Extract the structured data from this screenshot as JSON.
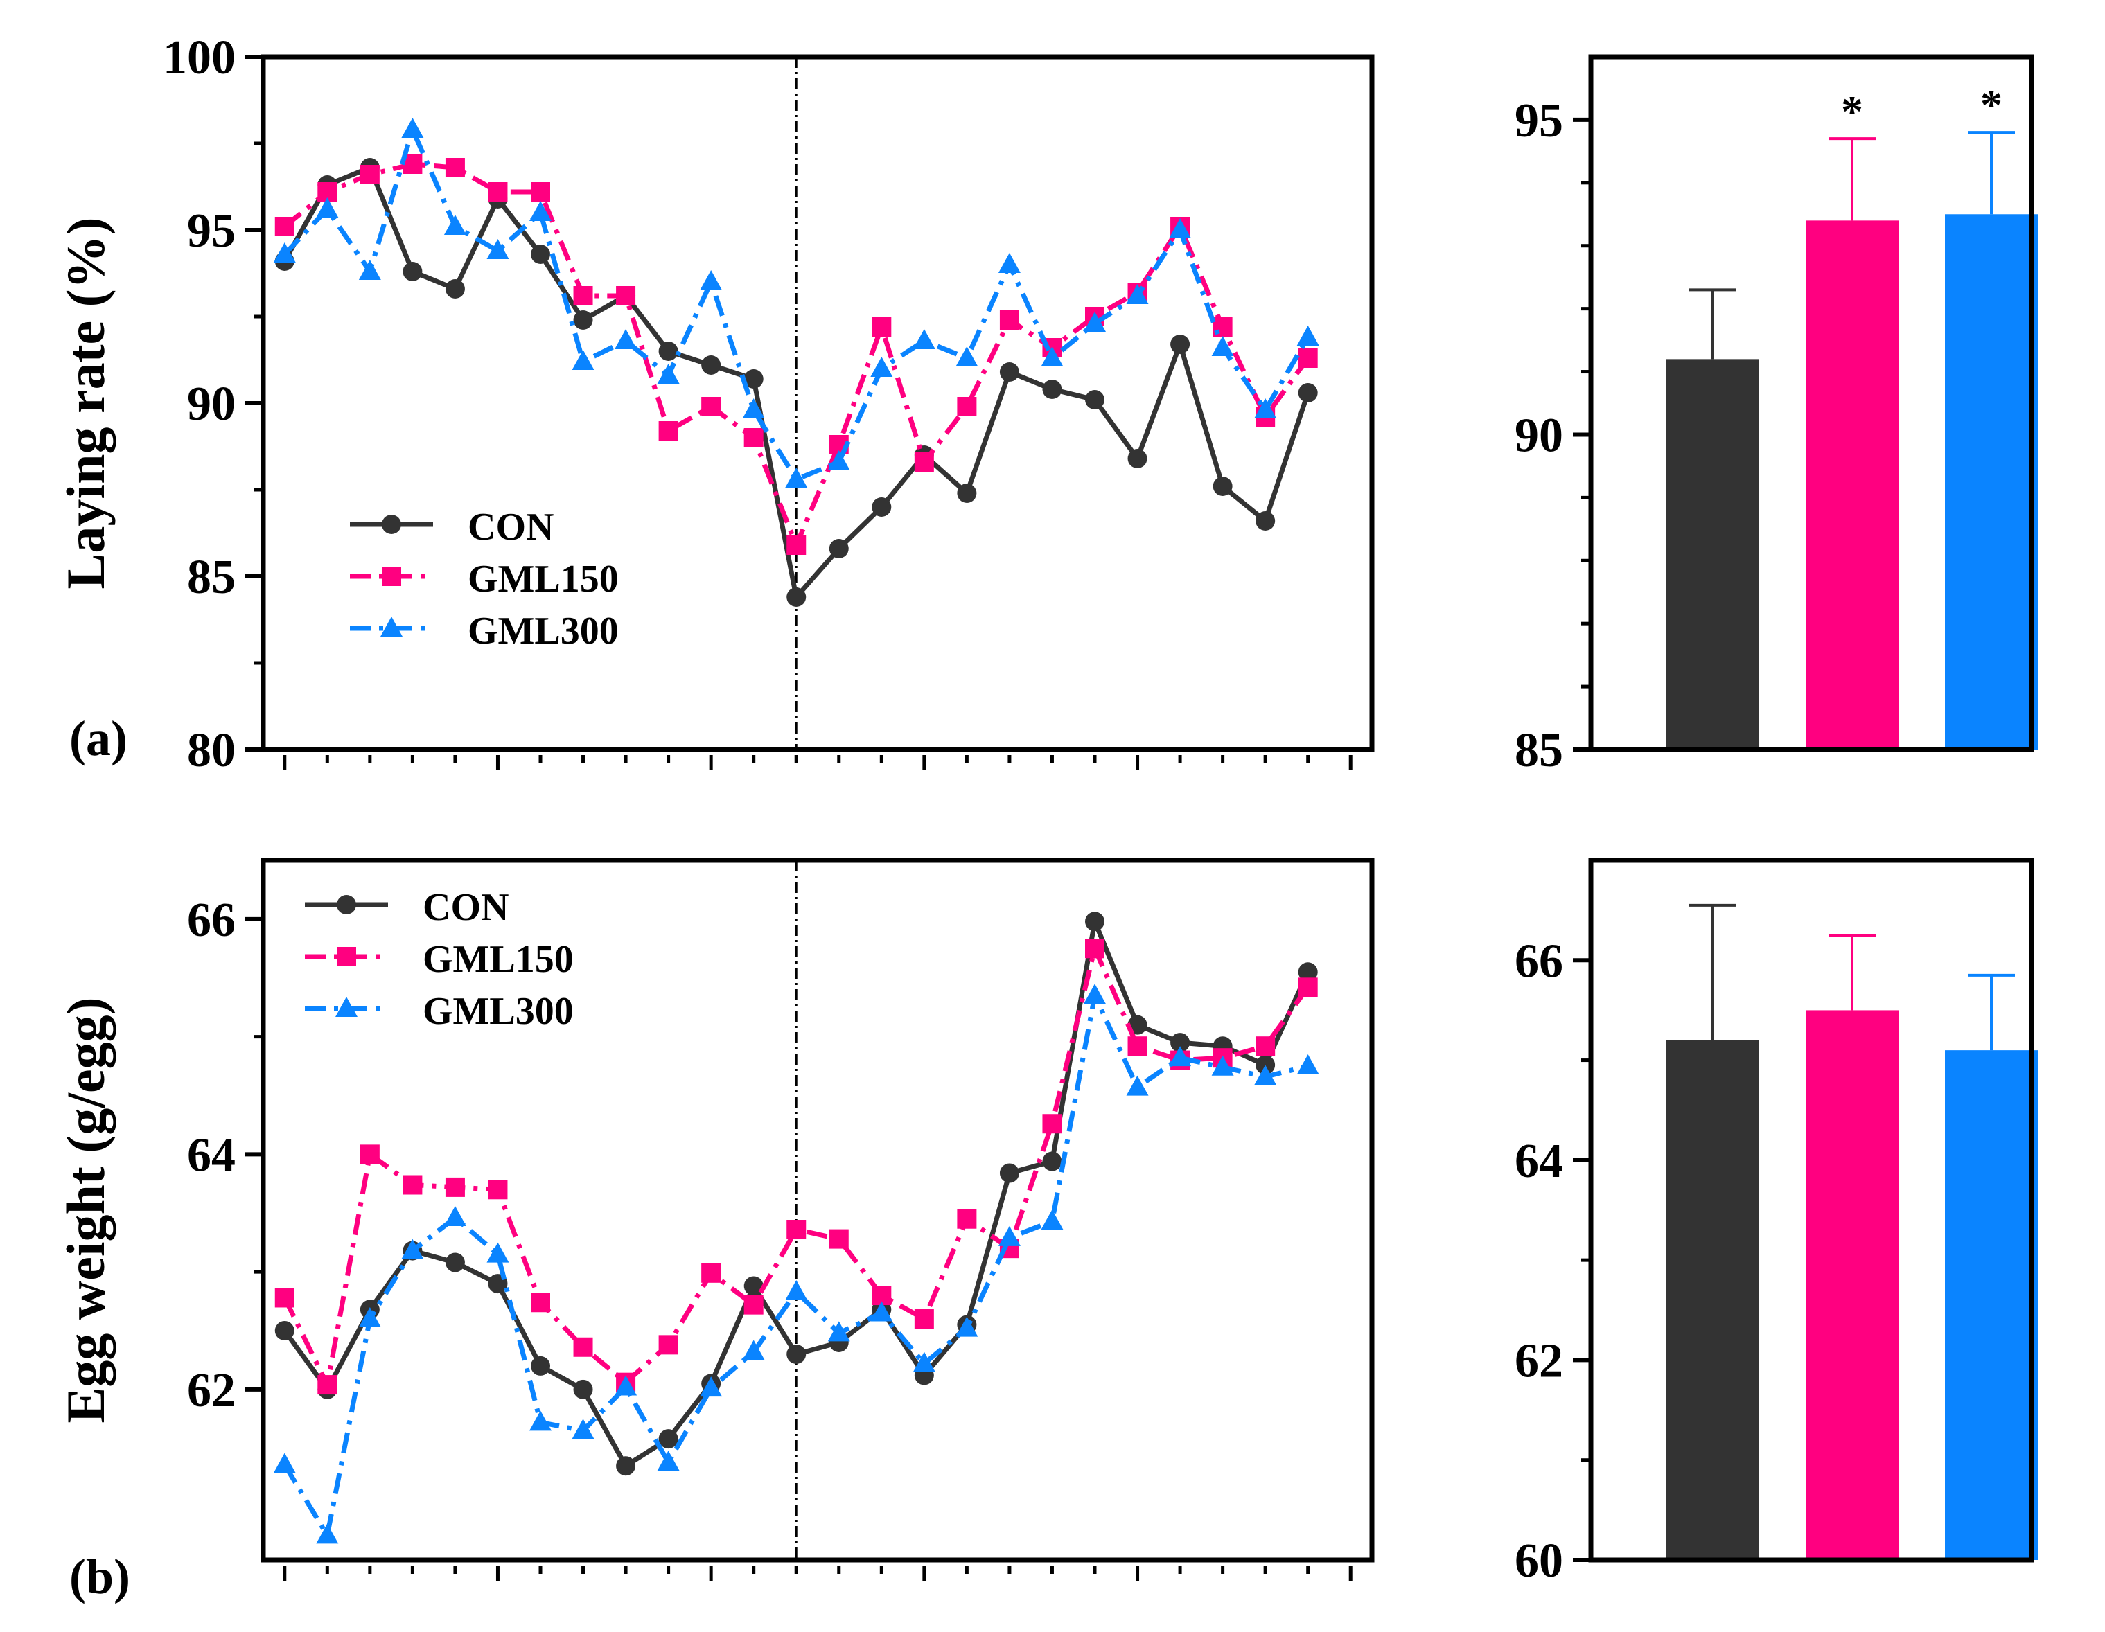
{
  "panel_a_label": "(a)",
  "panel_b_label": "(b)",
  "colors": {
    "con": "#333333",
    "gml150": "#FF0080",
    "gml300": "#0A84FF",
    "axis": "#000000"
  },
  "chart_data": [
    {
      "id": "laying-line",
      "type": "line",
      "ylabel": "Laying rate (%)",
      "ylim": [
        80,
        100
      ],
      "yticks": [
        "80",
        "85",
        "90",
        "95",
        "100"
      ],
      "x": [
        1,
        2,
        3,
        4,
        5,
        6,
        7,
        8,
        9,
        10,
        11,
        12,
        13,
        14,
        15,
        16,
        17,
        18,
        19,
        20,
        21,
        22,
        23,
        24,
        25,
        26
      ],
      "xlim": [
        0.5,
        26.5
      ],
      "divider_x": 13,
      "legend_position": "bottom-left",
      "series": [
        {
          "name": "CON",
          "key": "con",
          "marker": "circle",
          "dash": "",
          "values": [
            94.1,
            96.3,
            96.8,
            93.8,
            93.3,
            95.9,
            94.3,
            92.4,
            93.1,
            91.5,
            91.1,
            90.7,
            84.4,
            85.8,
            87.0,
            88.5,
            87.4,
            90.9,
            90.4,
            90.1,
            88.4,
            91.7,
            87.6,
            86.6,
            90.3,
            null
          ]
        },
        {
          "name": "GML150",
          "key": "gml150",
          "marker": "square",
          "dash": "dash-dot",
          "values": [
            95.1,
            96.1,
            96.6,
            96.9,
            96.8,
            96.1,
            96.1,
            93.1,
            93.1,
            89.2,
            89.9,
            89.0,
            85.9,
            88.8,
            92.2,
            88.3,
            89.9,
            92.4,
            91.6,
            92.5,
            93.2,
            95.1,
            92.2,
            89.6,
            91.3,
            null
          ]
        },
        {
          "name": "GML300",
          "key": "gml300",
          "marker": "triangle",
          "dash": "dash-dot",
          "values": [
            94.3,
            95.6,
            93.8,
            97.9,
            95.1,
            94.4,
            95.5,
            91.2,
            91.8,
            90.8,
            93.5,
            89.8,
            87.8,
            88.3,
            91.0,
            91.8,
            91.3,
            94.0,
            91.3,
            92.3,
            93.1,
            95.0,
            91.6,
            89.8,
            91.9,
            null
          ]
        }
      ]
    },
    {
      "id": "laying-bar",
      "type": "bar",
      "categories": [
        "CON",
        "GML150",
        "GML300"
      ],
      "values": [
        91.2,
        93.4,
        93.5
      ],
      "errors": [
        1.1,
        1.3,
        1.3
      ],
      "significance": [
        "",
        "*",
        "*"
      ],
      "ylim": [
        85,
        96
      ],
      "yticks": [
        "85",
        "90",
        "95"
      ]
    },
    {
      "id": "egg-line",
      "type": "line",
      "ylabel": "Egg weight (g/egg)",
      "ylim": [
        60.55,
        66.5
      ],
      "yticks": [
        "62",
        "64",
        "66"
      ],
      "x": [
        1,
        2,
        3,
        4,
        5,
        6,
        7,
        8,
        9,
        10,
        11,
        12,
        13,
        14,
        15,
        16,
        17,
        18,
        19,
        20,
        21,
        22,
        23,
        24,
        25,
        26
      ],
      "xlim": [
        0.5,
        26.5
      ],
      "divider_x": 13,
      "legend_position": "top-left",
      "series": [
        {
          "name": "CON",
          "key": "con",
          "marker": "circle",
          "dash": "",
          "values": [
            62.5,
            62.0,
            62.68,
            63.18,
            63.08,
            62.9,
            62.2,
            62.0,
            61.35,
            61.58,
            62.05,
            62.88,
            62.3,
            62.4,
            62.68,
            62.12,
            62.55,
            63.84,
            63.94,
            65.98,
            65.1,
            64.95,
            64.92,
            64.76,
            65.55,
            null
          ]
        },
        {
          "name": "GML150",
          "key": "gml150",
          "marker": "square",
          "dash": "dash-dot",
          "values": [
            62.78,
            62.04,
            64.0,
            63.74,
            63.72,
            63.7,
            62.74,
            62.36,
            62.06,
            62.38,
            62.99,
            62.72,
            63.36,
            63.28,
            62.8,
            62.6,
            63.45,
            63.2,
            64.26,
            65.75,
            64.92,
            64.8,
            64.82,
            64.92,
            65.42,
            null
          ]
        },
        {
          "name": "GML300",
          "key": "gml300",
          "marker": "triangle",
          "dash": "dash-dot",
          "values": [
            61.36,
            60.76,
            62.6,
            63.18,
            63.46,
            63.15,
            61.72,
            61.65,
            62.02,
            61.38,
            62.01,
            62.32,
            62.83,
            62.48,
            62.65,
            62.22,
            62.52,
            63.29,
            63.43,
            65.35,
            64.57,
            64.82,
            64.74,
            64.66,
            64.75,
            null
          ]
        }
      ]
    },
    {
      "id": "egg-bar",
      "type": "bar",
      "categories": [
        "CON",
        "GML150",
        "GML300"
      ],
      "values": [
        65.2,
        65.5,
        65.1
      ],
      "errors": [
        1.35,
        0.75,
        0.75
      ],
      "significance": [
        "",
        "",
        ""
      ],
      "ylim": [
        60,
        67
      ],
      "yticks": [
        "60",
        "62",
        "64",
        "66"
      ]
    }
  ]
}
